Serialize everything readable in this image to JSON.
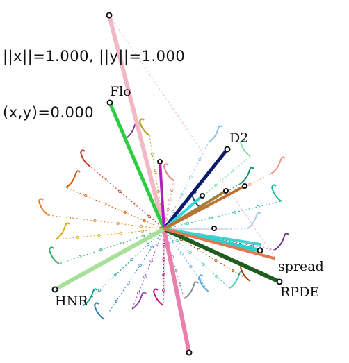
{
  "readout": {
    "norm_line": "||x||=1.000, ||y||=1.000",
    "dot_line": "(x,y)=0.000"
  },
  "variables": [
    {
      "name": "Flo",
      "color": "#2ecc40"
    },
    {
      "name": "D2",
      "color": "#0a1a6e"
    },
    {
      "name": "spread",
      "color": "#2ed0c8"
    },
    {
      "name": "RPDE",
      "color": "#1f5c1f"
    },
    {
      "name": "HNR",
      "color": "#a8e09a"
    }
  ],
  "axes_colors": {
    "x_axis": "#f2b8c6",
    "y_axis": "#e97fae"
  },
  "trail_colors": [
    "#c0392b",
    "#d35400",
    "#e67e22",
    "#d4ac0d",
    "#27ae60",
    "#16a085",
    "#2980b9",
    "#8e44ad",
    "#c71585",
    "#7f8c8d",
    "#5dade2",
    "#48c9b0",
    "#a04000",
    "#6c3483",
    "#1abc9c",
    "#f1948a",
    "#82e0aa",
    "#85c1e9",
    "#b7950b",
    "#76448a",
    "#d98880",
    "#138d75",
    "#2e4053",
    "#a9cce3"
  ]
}
